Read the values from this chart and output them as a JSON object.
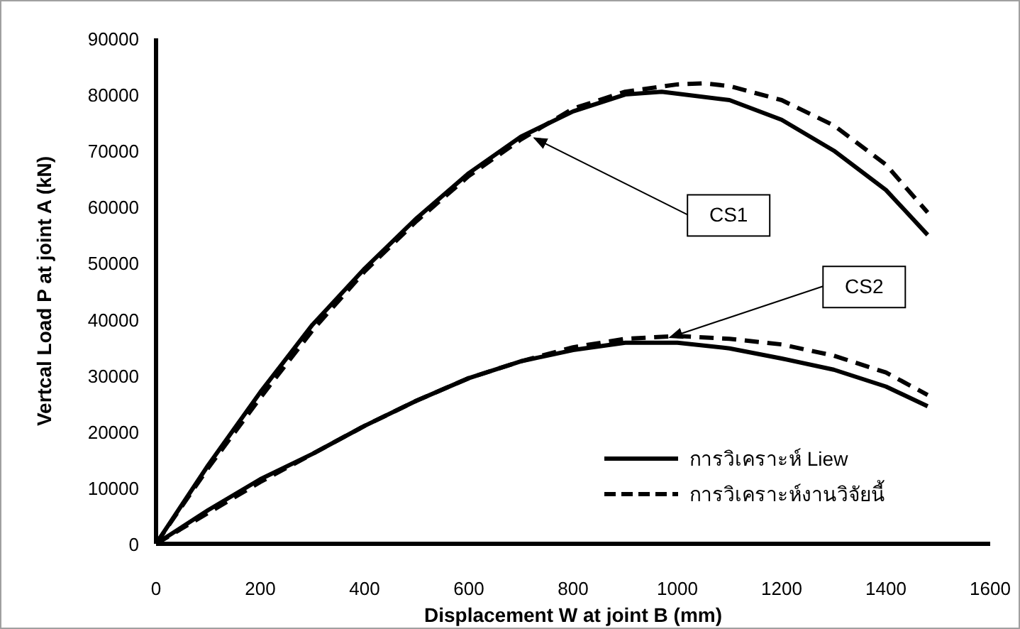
{
  "chart_data": {
    "type": "line",
    "xlabel": "Displacement W at joint B (mm)",
    "ylabel": "Vertcal Load P at joint A (kN)",
    "xlim": [
      0,
      1600
    ],
    "xticks": [
      0,
      200,
      400,
      600,
      800,
      1000,
      1200,
      1400,
      1600
    ],
    "ylim": [
      0,
      90000
    ],
    "yticks": [
      0,
      10000,
      20000,
      30000,
      40000,
      50000,
      60000,
      70000,
      80000,
      90000
    ],
    "grid": false,
    "legend": "bottom right",
    "marker": "none",
    "series": [
      {
        "name": "การวิเคราะห์ Liew",
        "color": "#000000",
        "line_style": "solid",
        "x": [
          0,
          100,
          200,
          300,
          400,
          500,
          600,
          700,
          800,
          900,
          970,
          1100,
          1200,
          1300,
          1400,
          1480
        ],
        "values": [
          0,
          14000,
          27000,
          39000,
          49000,
          58000,
          66000,
          72500,
          77000,
          80000,
          80500,
          79000,
          75500,
          70000,
          63000,
          55000
        ]
      },
      {
        "name": "การวิเคราะห์งานวิจัยนี้",
        "color": "#000000",
        "line_style": "dashed",
        "x": [
          0,
          100,
          200,
          300,
          400,
          500,
          600,
          700,
          800,
          900,
          1000,
          1050,
          1100,
          1200,
          1300,
          1400,
          1480
        ],
        "values": [
          0,
          13500,
          26000,
          38000,
          48500,
          57500,
          65500,
          72000,
          77500,
          80500,
          81800,
          82000,
          81500,
          79000,
          74500,
          67500,
          59000
        ]
      },
      {
        "color": "#000000",
        "line_style": "solid",
        "x": [
          0,
          100,
          200,
          300,
          400,
          500,
          600,
          700,
          800,
          900,
          1000,
          1100,
          1200,
          1300,
          1400,
          1480
        ],
        "values": [
          0,
          6000,
          11500,
          16000,
          21000,
          25500,
          29500,
          32500,
          34500,
          35800,
          35800,
          34800,
          33000,
          31000,
          28000,
          24500
        ]
      },
      {
        "color": "#000000",
        "line_style": "dashed",
        "x": [
          0,
          100,
          200,
          300,
          400,
          500,
          600,
          700,
          800,
          900,
          1000,
          1100,
          1200,
          1300,
          1400,
          1480
        ],
        "values": [
          0,
          5500,
          11000,
          16000,
          21000,
          25500,
          29500,
          32500,
          35000,
          36500,
          37000,
          36500,
          35500,
          33500,
          30500,
          26500
        ]
      }
    ],
    "annotations": [
      {
        "text": "CS1",
        "x": 720,
        "y": 72500
      },
      {
        "text": "CS2",
        "x": 980,
        "y": 36500
      }
    ]
  }
}
